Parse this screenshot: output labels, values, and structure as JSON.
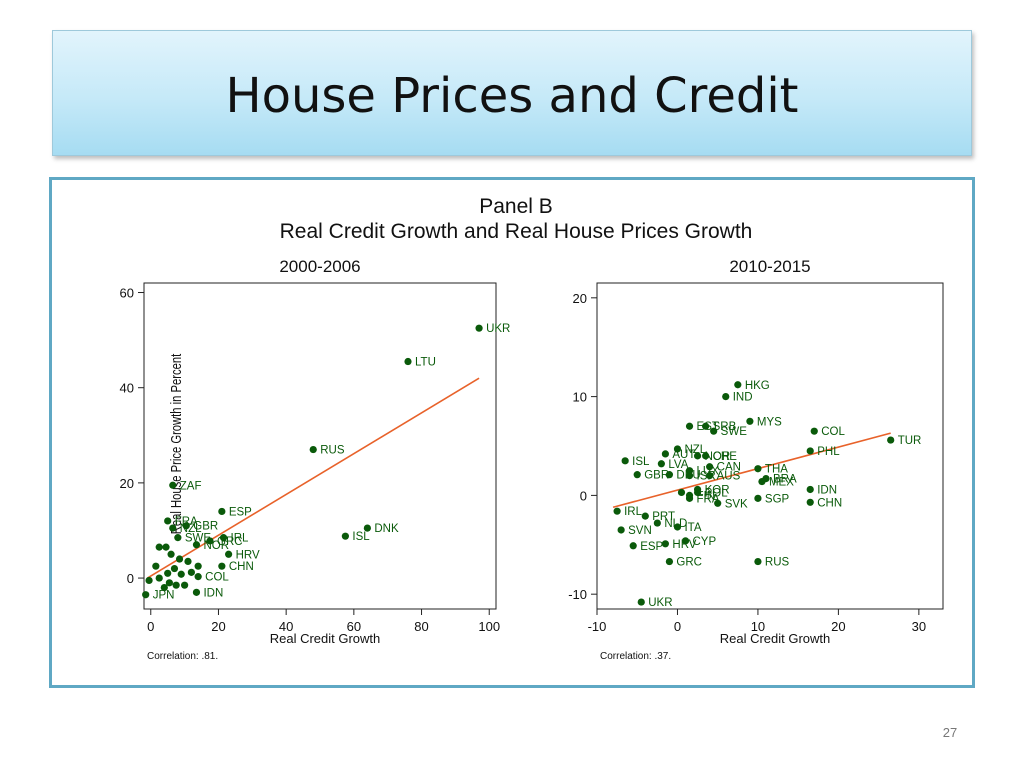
{
  "slide": {
    "title": "House Prices and Credit",
    "slide_number": "27",
    "colors": {
      "title_gradient_top": "#e2f4fc",
      "title_gradient_bottom": "#a6dcf2",
      "frame_border": "#5fa8c4",
      "markers": "#0a5a0a",
      "fit_line": "#e8622a"
    }
  },
  "chart_data": {
    "type": "scatter",
    "title": "Panel B",
    "subtitle": "Real Credit Growth and Real House Prices Growth",
    "ylabel": "Real House Price Growth in Percent",
    "panels": [
      {
        "title": "2000-2006",
        "xlabel": "Real Credit Growth",
        "xlim": [
          -2,
          102
        ],
        "ylim": [
          -6.5,
          62
        ],
        "xticks": [
          0,
          20,
          40,
          60,
          80,
          100
        ],
        "yticks": [
          0,
          20,
          40,
          60
        ],
        "correlation": "Correlation: .81.",
        "fit_line": [
          [
            -1,
            0
          ],
          [
            97,
            42
          ]
        ],
        "points": [
          {
            "label": "UKR",
            "x": 97,
            "y": 52.5
          },
          {
            "label": "LTU",
            "x": 76,
            "y": 45.5
          },
          {
            "label": "RUS",
            "x": 48,
            "y": 27
          },
          {
            "label": "DNK",
            "x": 64,
            "y": 10.5
          },
          {
            "label": "ISL",
            "x": 57.5,
            "y": 8.8
          },
          {
            "label": "ZAF",
            "x": 6.5,
            "y": 19.5
          },
          {
            "label": "ESP",
            "x": 21,
            "y": 14
          },
          {
            "label": "FRA",
            "x": 5,
            "y": 12
          },
          {
            "label": "GBR",
            "x": 10.5,
            "y": 11
          },
          {
            "label": "NZL",
            "x": 6.5,
            "y": 10.5
          },
          {
            "label": "SWE",
            "x": 8,
            "y": 8.5
          },
          {
            "label": "IRL",
            "x": 21.5,
            "y": 8.5
          },
          {
            "label": "GRC",
            "x": 17.5,
            "y": 7.8
          },
          {
            "label": "NOR",
            "x": 13.5,
            "y": 7
          },
          {
            "label": "",
            "x": 2.5,
            "y": 6.5
          },
          {
            "label": "",
            "x": 4.5,
            "y": 6.5
          },
          {
            "label": "HRV",
            "x": 23,
            "y": 5
          },
          {
            "label": "",
            "x": 6,
            "y": 5
          },
          {
            "label": "",
            "x": 8.5,
            "y": 4
          },
          {
            "label": "",
            "x": 11,
            "y": 3.5
          },
          {
            "label": "CHN",
            "x": 21,
            "y": 2.5
          },
          {
            "label": "",
            "x": 1.5,
            "y": 2.5
          },
          {
            "label": "",
            "x": 7,
            "y": 2
          },
          {
            "label": "",
            "x": 14,
            "y": 2.5
          },
          {
            "label": "",
            "x": 5,
            "y": 1
          },
          {
            "label": "",
            "x": 9,
            "y": 0.8
          },
          {
            "label": "",
            "x": 12,
            "y": 1.2
          },
          {
            "label": "COL",
            "x": 14,
            "y": 0.3
          },
          {
            "label": "",
            "x": 2.5,
            "y": 0
          },
          {
            "label": "",
            "x": 5.5,
            "y": -1
          },
          {
            "label": "",
            "x": -0.5,
            "y": -0.5
          },
          {
            "label": "",
            "x": 7.5,
            "y": -1.5
          },
          {
            "label": "",
            "x": 4,
            "y": -2
          },
          {
            "label": "",
            "x": 10,
            "y": -1.5
          },
          {
            "label": "IDN",
            "x": 13.5,
            "y": -3
          },
          {
            "label": "JPN",
            "x": -1.5,
            "y": -3.5
          }
        ]
      },
      {
        "title": "2010-2015",
        "xlabel": "Real Credit Growth",
        "xlim": [
          -10,
          33
        ],
        "ylim": [
          -11.5,
          21.5
        ],
        "xticks": [
          -10,
          0,
          10,
          20,
          30
        ],
        "yticks": [
          -10,
          0,
          10,
          20
        ],
        "correlation": "Correlation: .37.",
        "fit_line": [
          [
            -8,
            -1.2
          ],
          [
            26.5,
            6.3
          ]
        ],
        "points": [
          {
            "label": "HKG",
            "x": 7.5,
            "y": 11.2
          },
          {
            "label": "IND",
            "x": 6,
            "y": 10
          },
          {
            "label": "MYS",
            "x": 9,
            "y": 7.5
          },
          {
            "label": "EST",
            "x": 1.5,
            "y": 7
          },
          {
            "label": "SRB",
            "x": 3.5,
            "y": 7
          },
          {
            "label": "SWE",
            "x": 4.5,
            "y": 6.5
          },
          {
            "label": "COL",
            "x": 17,
            "y": 6.5
          },
          {
            "label": "TUR",
            "x": 26.5,
            "y": 5.6
          },
          {
            "label": "NZL",
            "x": 0,
            "y": 4.7
          },
          {
            "label": "PHL",
            "x": 16.5,
            "y": 4.5
          },
          {
            "label": "AUT",
            "x": -1.5,
            "y": 4.2
          },
          {
            "label": "NOR",
            "x": 2.5,
            "y": 4
          },
          {
            "label": "CHE",
            "x": 3.5,
            "y": 4
          },
          {
            "label": "ISL",
            "x": -6.5,
            "y": 3.5
          },
          {
            "label": "LVA",
            "x": -2,
            "y": 3.2
          },
          {
            "label": "CAN",
            "x": 4,
            "y": 2.9
          },
          {
            "label": "THA",
            "x": 10,
            "y": 2.7
          },
          {
            "label": "LUX",
            "x": 1.5,
            "y": 2.5
          },
          {
            "label": "GBR",
            "x": -5,
            "y": 2.1
          },
          {
            "label": "DEU",
            "x": -1,
            "y": 2.1
          },
          {
            "label": "ISR",
            "x": 1.5,
            "y": 2
          },
          {
            "label": "AUS",
            "x": 4,
            "y": 2
          },
          {
            "label": "BRA",
            "x": 11,
            "y": 1.7
          },
          {
            "label": "MEX",
            "x": 10.5,
            "y": 1.4
          },
          {
            "label": "KOR",
            "x": 2.5,
            "y": 0.6
          },
          {
            "label": "IDN",
            "x": 16.5,
            "y": 0.6
          },
          {
            "label": "",
            "x": 0.5,
            "y": 0.3
          },
          {
            "label": "FIN",
            "x": 1.5,
            "y": 0
          },
          {
            "label": "POL",
            "x": 2.5,
            "y": 0.3
          },
          {
            "label": "FRA",
            "x": 1.5,
            "y": -0.3
          },
          {
            "label": "SGP",
            "x": 10,
            "y": -0.3
          },
          {
            "label": "CHN",
            "x": 16.5,
            "y": -0.7
          },
          {
            "label": "SVK",
            "x": 5,
            "y": -0.8
          },
          {
            "label": "IRL",
            "x": -7.5,
            "y": -1.6
          },
          {
            "label": "PRT",
            "x": -4,
            "y": -2.1
          },
          {
            "label": "NLD",
            "x": -2.5,
            "y": -2.8
          },
          {
            "label": "ITA",
            "x": 0,
            "y": -3.2
          },
          {
            "label": "SVN",
            "x": -7,
            "y": -3.5
          },
          {
            "label": "CYP",
            "x": 1,
            "y": -4.6
          },
          {
            "label": "HRV",
            "x": -1.5,
            "y": -4.9
          },
          {
            "label": "ESP",
            "x": -5.5,
            "y": -5.1
          },
          {
            "label": "GRC",
            "x": -1,
            "y": -6.7
          },
          {
            "label": "RUS",
            "x": 10,
            "y": -6.7
          },
          {
            "label": "UKR",
            "x": -4.5,
            "y": -10.8
          }
        ]
      }
    ]
  }
}
